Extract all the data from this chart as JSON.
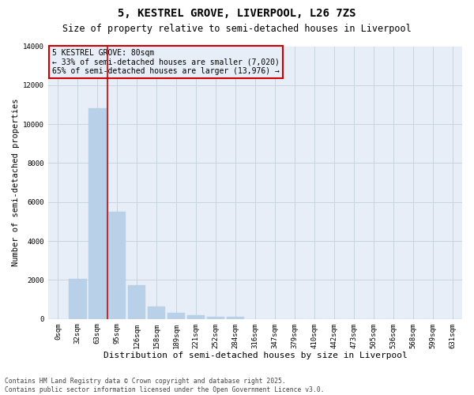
{
  "title": "5, KESTREL GROVE, LIVERPOOL, L26 7ZS",
  "subtitle": "Size of property relative to semi-detached houses in Liverpool",
  "xlabel": "Distribution of semi-detached houses by size in Liverpool",
  "ylabel": "Number of semi-detached properties",
  "annotation_title": "5 KESTREL GROVE: 80sqm",
  "annotation_smaller": "← 33% of semi-detached houses are smaller (7,020)",
  "annotation_larger": "65% of semi-detached houses are larger (13,976) →",
  "footer_line1": "Contains HM Land Registry data © Crown copyright and database right 2025.",
  "footer_line2": "Contains public sector information licensed under the Open Government Licence v3.0.",
  "categories": [
    "0sqm",
    "32sqm",
    "63sqm",
    "95sqm",
    "126sqm",
    "158sqm",
    "189sqm",
    "221sqm",
    "252sqm",
    "284sqm",
    "316sqm",
    "347sqm",
    "379sqm",
    "410sqm",
    "442sqm",
    "473sqm",
    "505sqm",
    "536sqm",
    "568sqm",
    "599sqm",
    "631sqm"
  ],
  "values": [
    0,
    2050,
    10800,
    5500,
    1750,
    620,
    310,
    200,
    130,
    100,
    0,
    0,
    0,
    0,
    0,
    0,
    0,
    0,
    0,
    0,
    0
  ],
  "bar_color": "#b8d0e8",
  "bar_edge_color": "#b8d0e8",
  "line_color": "#cc0000",
  "annotation_box_color": "#cc0000",
  "background_color": "#ffffff",
  "plot_bg_color": "#e8eef8",
  "grid_color": "#c8d4e0",
  "ylim": [
    0,
    14000
  ],
  "yticks": [
    0,
    2000,
    4000,
    6000,
    8000,
    10000,
    12000,
    14000
  ],
  "red_line_x": 2.5,
  "title_fontsize": 10,
  "subtitle_fontsize": 8.5,
  "tick_fontsize": 6.5,
  "ylabel_fontsize": 7.5,
  "xlabel_fontsize": 8,
  "annotation_fontsize": 7,
  "footer_fontsize": 5.8
}
